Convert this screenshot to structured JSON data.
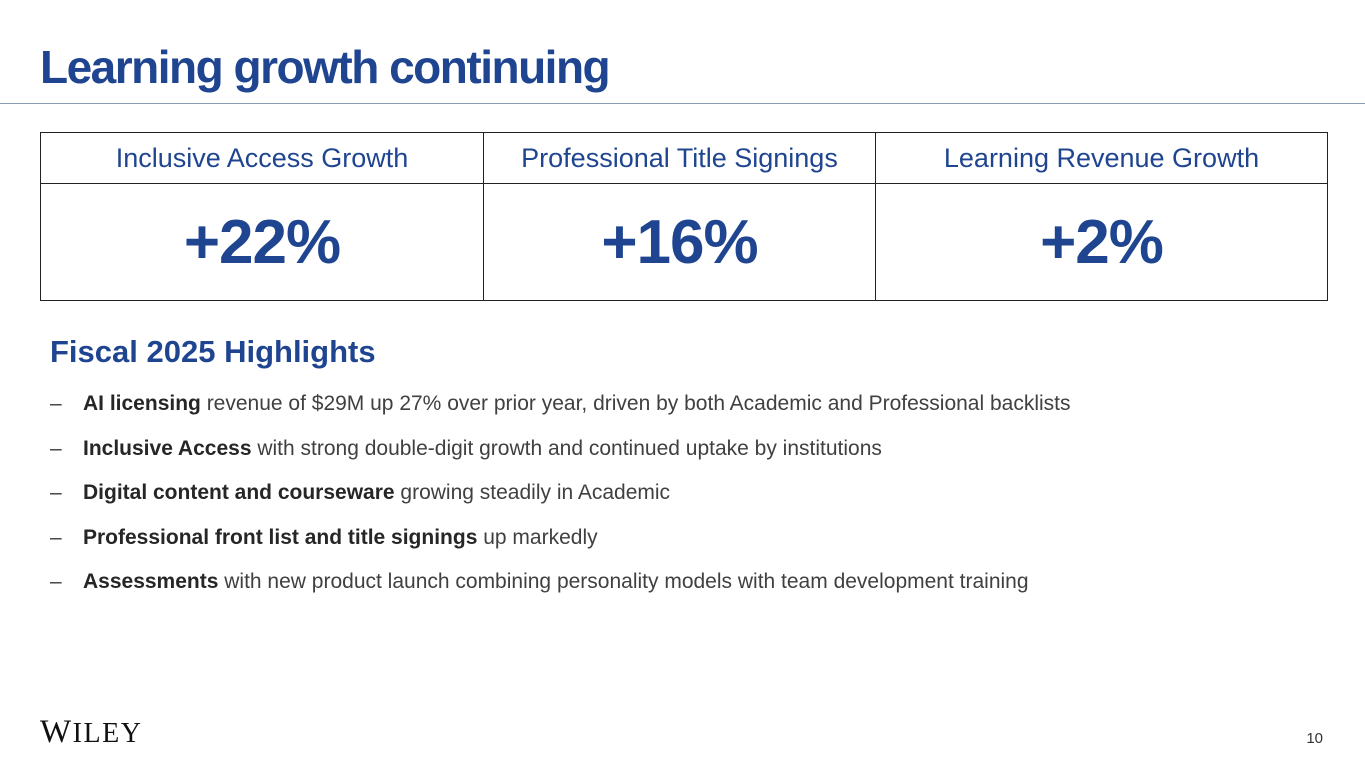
{
  "slide": {
    "title": "Learning growth continuing",
    "metrics": [
      {
        "label": "Inclusive Access Growth",
        "value": "+22%"
      },
      {
        "label": "Professional Title Signings",
        "value": "+16%"
      },
      {
        "label": "Learning Revenue Growth",
        "value": "+2%"
      }
    ],
    "highlights_title": "Fiscal 2025 Highlights",
    "highlights": [
      {
        "bold": "AI licensing",
        "rest": " revenue of $29M up 27% over prior year, driven by both Academic and Professional backlists"
      },
      {
        "bold": "Inclusive Access",
        "rest": " with strong double-digit growth and continued uptake by institutions"
      },
      {
        "bold": "Digital content and courseware",
        "rest": " growing steadily in Academic"
      },
      {
        "bold": "Professional front list and title signings",
        "rest": " up markedly"
      },
      {
        "bold": "Assessments",
        "rest": " with new product launch combining personality models with team development training"
      }
    ],
    "bullet_marker": "–",
    "logo_initial": "W",
    "logo_rest": "ILEY",
    "page_number": "10"
  }
}
